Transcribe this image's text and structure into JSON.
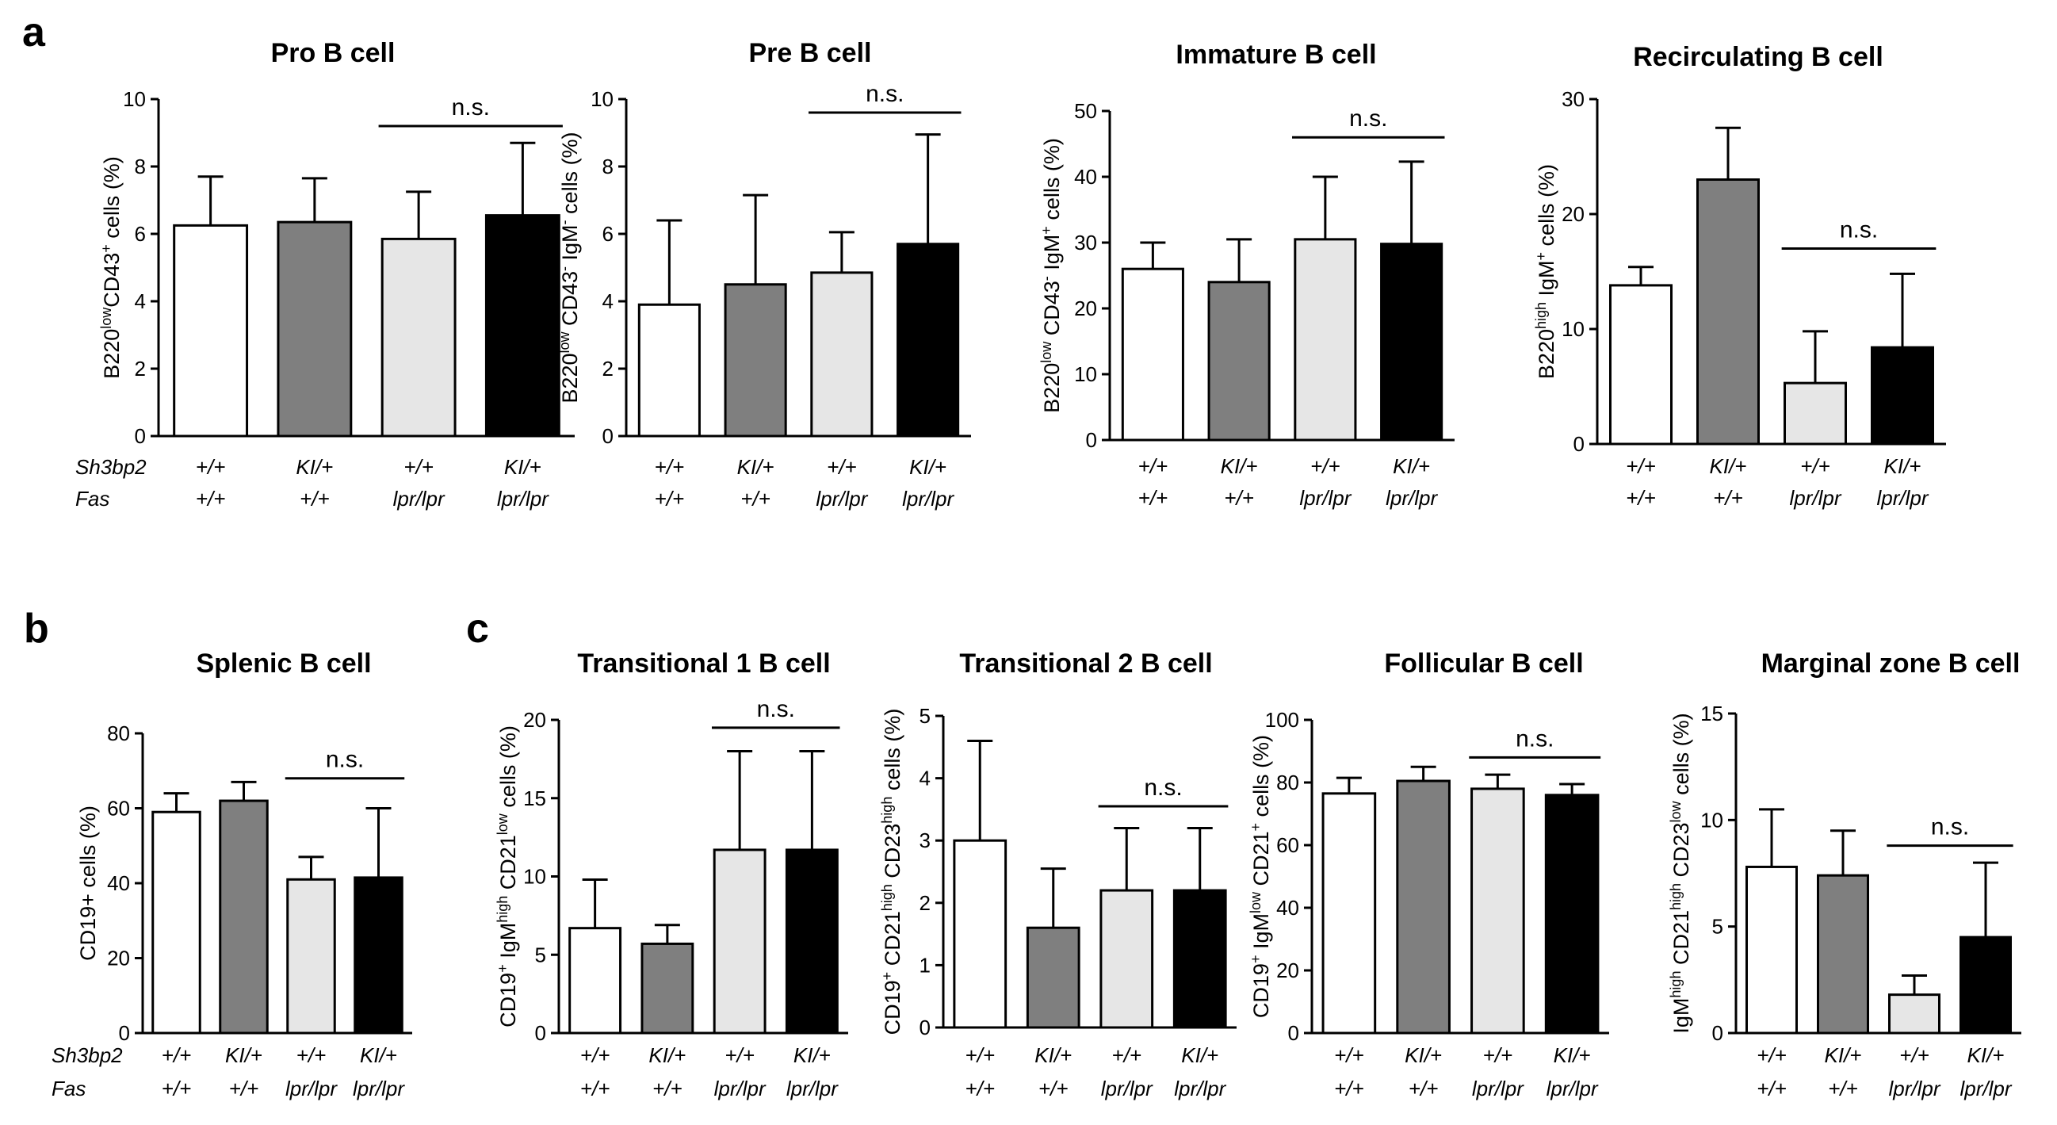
{
  "panel_labels": [
    "a",
    "b",
    "c"
  ],
  "row_labels": {
    "gene1": "Sh3bp2",
    "gene2": "Fas"
  },
  "sig_label": "n.s.",
  "colors": {
    "wt": "#ffffff",
    "ki": "#7f7f7f",
    "lpr": "#e6e6e6",
    "ki_lpr": "#000000",
    "axis": "#000000"
  },
  "chart_data": [
    {
      "type": "bar",
      "title": "Pro B cell",
      "ylabel_parts": [
        [
          "B220",
          ""
        ],
        [
          "low",
          "sup"
        ],
        [
          "CD43",
          ""
        ],
        [
          "+",
          "sup"
        ],
        [
          " cells (%)",
          ""
        ]
      ],
      "ylim": [
        0,
        10
      ],
      "yticks": [
        0,
        2,
        4,
        6,
        8,
        10
      ],
      "categories": [
        [
          "+/+",
          "+/+"
        ],
        [
          "KI/+",
          "+/+"
        ],
        [
          "+/+",
          "lpr/lpr"
        ],
        [
          "KI/+",
          "lpr/lpr"
        ]
      ],
      "values": [
        6.25,
        6.35,
        5.85,
        6.55
      ],
      "errors": [
        1.45,
        1.3,
        1.4,
        2.15
      ],
      "sig": {
        "bars": [
          2,
          3
        ],
        "y": 9.2,
        "label": "n.s."
      }
    },
    {
      "type": "bar",
      "title": "Pre B cell",
      "ylabel_parts": [
        [
          "B220",
          ""
        ],
        [
          "low",
          "sup"
        ],
        [
          " CD43",
          ""
        ],
        [
          "-",
          "sup"
        ],
        [
          " IgM",
          ""
        ],
        [
          "-",
          "sup"
        ],
        [
          " cells (%)",
          ""
        ]
      ],
      "ylim": [
        0,
        10
      ],
      "yticks": [
        0,
        2,
        4,
        6,
        8,
        10
      ],
      "categories": [
        [
          "+/+",
          "+/+"
        ],
        [
          "KI/+",
          "+/+"
        ],
        [
          "+/+",
          "lpr/lpr"
        ],
        [
          "KI/+",
          "lpr/lpr"
        ]
      ],
      "values": [
        3.9,
        4.5,
        4.85,
        5.7
      ],
      "errors": [
        2.5,
        2.65,
        1.2,
        3.25
      ],
      "sig": {
        "bars": [
          2,
          3
        ],
        "y": 9.6,
        "label": "n.s."
      }
    },
    {
      "type": "bar",
      "title": "Immature B cell",
      "ylabel_parts": [
        [
          "B220",
          ""
        ],
        [
          "low",
          "sup"
        ],
        [
          " CD43",
          ""
        ],
        [
          "-",
          "sup"
        ],
        [
          " IgM",
          ""
        ],
        [
          "+",
          "sup"
        ],
        [
          " cells (%)",
          ""
        ]
      ],
      "ylim": [
        0,
        50
      ],
      "yticks": [
        0,
        10,
        20,
        30,
        40,
        50
      ],
      "categories": [
        [
          "+/+",
          "+/+"
        ],
        [
          "KI/+",
          "+/+"
        ],
        [
          "+/+",
          "lpr/lpr"
        ],
        [
          "KI/+",
          "lpr/lpr"
        ]
      ],
      "values": [
        26,
        24,
        30.5,
        29.8
      ],
      "errors": [
        4,
        6.5,
        9.5,
        12.5
      ],
      "sig": {
        "bars": [
          2,
          3
        ],
        "y": 46,
        "label": "n.s."
      }
    },
    {
      "type": "bar",
      "title": "Recirculating B cell",
      "ylabel_parts": [
        [
          "B220",
          ""
        ],
        [
          "high",
          "sup"
        ],
        [
          " IgM",
          ""
        ],
        [
          "+",
          "sup"
        ],
        [
          " cells (%)",
          ""
        ]
      ],
      "ylim": [
        0,
        30
      ],
      "yticks": [
        0,
        10,
        20,
        30
      ],
      "categories": [
        [
          "+/+",
          "+/+"
        ],
        [
          "KI/+",
          "+/+"
        ],
        [
          "+/+",
          "lpr/lpr"
        ],
        [
          "KI/+",
          "lpr/lpr"
        ]
      ],
      "values": [
        13.8,
        23,
        5.3,
        8.4
      ],
      "errors": [
        1.6,
        4.5,
        4.5,
        6.4
      ],
      "sig": {
        "bars": [
          2,
          3
        ],
        "y": 17,
        "label": "n.s."
      }
    },
    {
      "type": "bar",
      "title": "Splenic B cell",
      "ylabel_parts": [
        [
          "CD19+ cells (%)",
          ""
        ]
      ],
      "ylim": [
        0,
        80
      ],
      "yticks": [
        0,
        20,
        40,
        60,
        80
      ],
      "categories": [
        [
          "+/+",
          "+/+"
        ],
        [
          "KI/+",
          "+/+"
        ],
        [
          "+/+",
          "lpr/lpr"
        ],
        [
          "KI/+",
          "lpr/lpr"
        ]
      ],
      "values": [
        59,
        62,
        41,
        41.5
      ],
      "errors": [
        5,
        5,
        6,
        18.5
      ],
      "sig": {
        "bars": [
          2,
          3
        ],
        "y": 68,
        "label": "n.s."
      }
    },
    {
      "type": "bar",
      "title": "Transitional 1 B cell",
      "ylabel_parts": [
        [
          "CD19",
          ""
        ],
        [
          "+",
          "sup"
        ],
        [
          " IgM",
          ""
        ],
        [
          "high",
          "sup"
        ],
        [
          " CD21",
          ""
        ],
        [
          "low",
          "sup"
        ],
        [
          " cells (%)",
          ""
        ]
      ],
      "ylim": [
        0,
        20
      ],
      "yticks": [
        0,
        5,
        10,
        15,
        20
      ],
      "categories": [
        [
          "+/+",
          "+/+"
        ],
        [
          "KI/+",
          "+/+"
        ],
        [
          "+/+",
          "lpr/lpr"
        ],
        [
          "KI/+",
          "lpr/lpr"
        ]
      ],
      "values": [
        6.7,
        5.7,
        11.7,
        11.7
      ],
      "errors": [
        3.1,
        1.2,
        6.3,
        6.3
      ],
      "sig": {
        "bars": [
          2,
          3
        ],
        "y": 19.5,
        "label": "n.s."
      }
    },
    {
      "type": "bar",
      "title": "Transitional 2 B cell",
      "ylabel_parts": [
        [
          "CD19",
          ""
        ],
        [
          "+",
          "sup"
        ],
        [
          " CD21",
          ""
        ],
        [
          "high",
          "sup"
        ],
        [
          " CD23",
          ""
        ],
        [
          "high",
          "sup"
        ],
        [
          " cells (%)",
          ""
        ]
      ],
      "ylim": [
        0,
        5
      ],
      "yticks": [
        0,
        1,
        2,
        3,
        4,
        5
      ],
      "categories": [
        [
          "+/+",
          "+/+"
        ],
        [
          "KI/+",
          "+/+"
        ],
        [
          "+/+",
          "lpr/lpr"
        ],
        [
          "KI/+",
          "lpr/lpr"
        ]
      ],
      "values": [
        3.0,
        1.6,
        2.2,
        2.2
      ],
      "errors": [
        1.6,
        0.95,
        1.0,
        1.0
      ],
      "sig": {
        "bars": [
          2,
          3
        ],
        "y": 3.55,
        "label": "n.s."
      }
    },
    {
      "type": "bar",
      "title": "Follicular B cell",
      "ylabel_parts": [
        [
          "CD19",
          ""
        ],
        [
          "+",
          "sup"
        ],
        [
          " IgM",
          ""
        ],
        [
          "low",
          "sup"
        ],
        [
          " CD21",
          ""
        ],
        [
          "+",
          "sup"
        ],
        [
          " cells (%)",
          ""
        ]
      ],
      "ylim": [
        0,
        100
      ],
      "yticks": [
        0,
        20,
        40,
        60,
        80,
        100
      ],
      "categories": [
        [
          "+/+",
          "+/+"
        ],
        [
          "KI/+",
          "+/+"
        ],
        [
          "+/+",
          "lpr/lpr"
        ],
        [
          "KI/+",
          "lpr/lpr"
        ]
      ],
      "values": [
        76.5,
        80.5,
        78,
        76
      ],
      "errors": [
        5,
        4.5,
        4.5,
        3.5
      ],
      "sig": {
        "bars": [
          2,
          3
        ],
        "y": 88,
        "label": "n.s."
      }
    },
    {
      "type": "bar",
      "title": "Marginal zone B cell",
      "ylabel_parts": [
        [
          "IgM",
          ""
        ],
        [
          "high",
          "sup"
        ],
        [
          " CD21",
          ""
        ],
        [
          "high",
          "sup"
        ],
        [
          " CD23",
          ""
        ],
        [
          "low",
          "sup"
        ],
        [
          " cells (%)",
          ""
        ]
      ],
      "ylim": [
        0,
        15
      ],
      "yticks": [
        0,
        5,
        10,
        15
      ],
      "categories": [
        [
          "+/+",
          "+/+"
        ],
        [
          "KI/+",
          "+/+"
        ],
        [
          "+/+",
          "lpr/lpr"
        ],
        [
          "KI/+",
          "lpr/lpr"
        ]
      ],
      "values": [
        7.8,
        7.4,
        1.8,
        4.5
      ],
      "errors": [
        2.7,
        2.1,
        0.9,
        3.5
      ],
      "sig": {
        "bars": [
          2,
          3
        ],
        "y": 8.8,
        "label": "n.s."
      }
    }
  ]
}
